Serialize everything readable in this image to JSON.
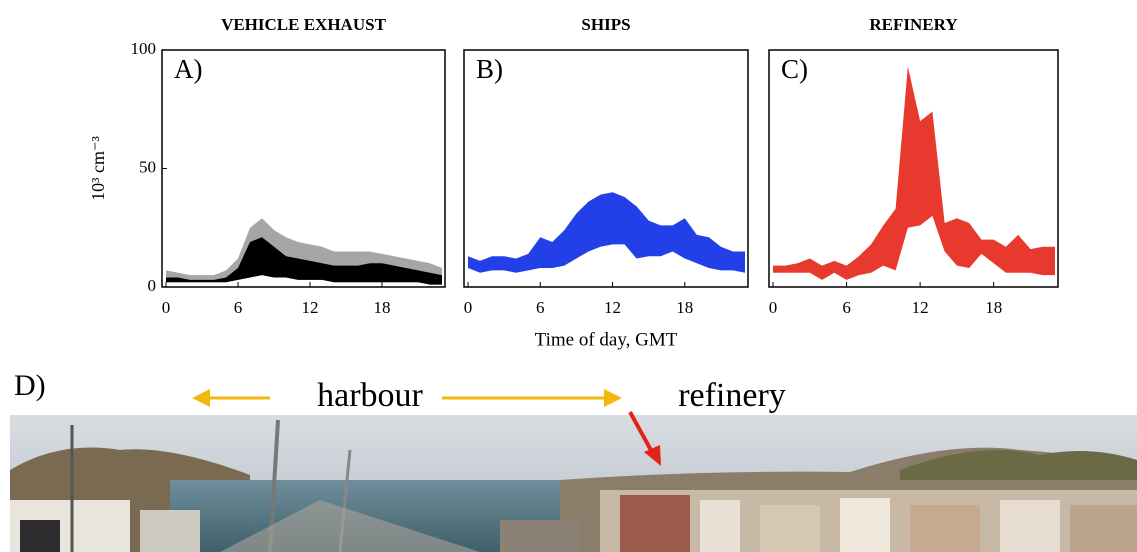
{
  "chart_data": [
    {
      "type": "band",
      "title": "VEHICLE EXHAUST",
      "panel_label": "A)",
      "y_label": "10³ cm⁻³",
      "x": [
        0,
        1,
        2,
        3,
        4,
        5,
        6,
        7,
        8,
        9,
        10,
        11,
        12,
        13,
        14,
        15,
        16,
        17,
        18,
        19,
        20,
        21,
        22,
        23
      ],
      "xlim": [
        0,
        23
      ],
      "xticks": [
        0,
        6,
        12,
        18
      ],
      "ylim": [
        0,
        100
      ],
      "yticks": [
        0,
        50,
        100
      ],
      "series": [
        {
          "color": "#a6a6a6",
          "low": [
            2,
            2,
            2,
            2,
            2,
            2,
            3,
            4,
            5,
            4,
            4,
            3,
            3,
            3,
            2,
            2,
            2,
            2,
            2,
            2,
            2,
            2,
            1,
            1
          ],
          "high": [
            7,
            6,
            5,
            5,
            5,
            7,
            12,
            25,
            29,
            24,
            21,
            19,
            18,
            17,
            15,
            15,
            15,
            15,
            14,
            13,
            12,
            11,
            10,
            8
          ]
        },
        {
          "color": "#000000",
          "low": [
            2,
            2,
            2,
            2,
            2,
            2,
            3,
            4,
            5,
            4,
            4,
            3,
            3,
            3,
            2,
            2,
            2,
            2,
            2,
            2,
            2,
            2,
            1,
            1
          ],
          "high": [
            4,
            4,
            3,
            3,
            3,
            4,
            8,
            19,
            21,
            17,
            13,
            12,
            11,
            10,
            9,
            9,
            9,
            10,
            10,
            9,
            8,
            7,
            6,
            5
          ]
        }
      ]
    },
    {
      "type": "band",
      "title": "SHIPS",
      "panel_label": "B)",
      "x_label": "Time of day, GMT",
      "x": [
        0,
        1,
        2,
        3,
        4,
        5,
        6,
        7,
        8,
        9,
        10,
        11,
        12,
        13,
        14,
        15,
        16,
        17,
        18,
        19,
        20,
        21,
        22,
        23
      ],
      "xlim": [
        0,
        23
      ],
      "xticks": [
        0,
        6,
        12,
        18
      ],
      "ylim": [
        0,
        100
      ],
      "series": [
        {
          "color": "#2340e8",
          "low": [
            8,
            6,
            7,
            7,
            6,
            7,
            8,
            8,
            9,
            12,
            15,
            17,
            18,
            18,
            12,
            13,
            13,
            15,
            12,
            10,
            8,
            7,
            7,
            6
          ],
          "high": [
            13,
            11,
            13,
            13,
            12,
            14,
            21,
            19,
            24,
            31,
            36,
            39,
            40,
            38,
            34,
            28,
            26,
            26,
            29,
            22,
            21,
            17,
            15,
            15
          ]
        }
      ]
    },
    {
      "type": "band",
      "title": "REFINERY",
      "panel_label": "C)",
      "x": [
        0,
        1,
        2,
        3,
        4,
        5,
        6,
        7,
        8,
        9,
        10,
        11,
        12,
        13,
        14,
        15,
        16,
        17,
        18,
        19,
        20,
        21,
        22,
        23
      ],
      "xlim": [
        0,
        23
      ],
      "xticks": [
        0,
        6,
        12,
        18
      ],
      "ylim": [
        0,
        100
      ],
      "series": [
        {
          "color": "#e8392e",
          "low": [
            6,
            6,
            6,
            6,
            3,
            6,
            3,
            5,
            6,
            9,
            7,
            25,
            26,
            30,
            15,
            9,
            8,
            14,
            10,
            6,
            6,
            6,
            5,
            5
          ],
          "high": [
            9,
            9,
            10,
            12,
            9,
            11,
            9,
            13,
            18,
            26,
            33,
            93,
            70,
            74,
            27,
            29,
            27,
            20,
            20,
            17,
            22,
            16,
            17,
            17
          ]
        }
      ]
    }
  ],
  "panel_d": {
    "label": "D)",
    "harbour": "harbour",
    "refinery": "refinery"
  }
}
